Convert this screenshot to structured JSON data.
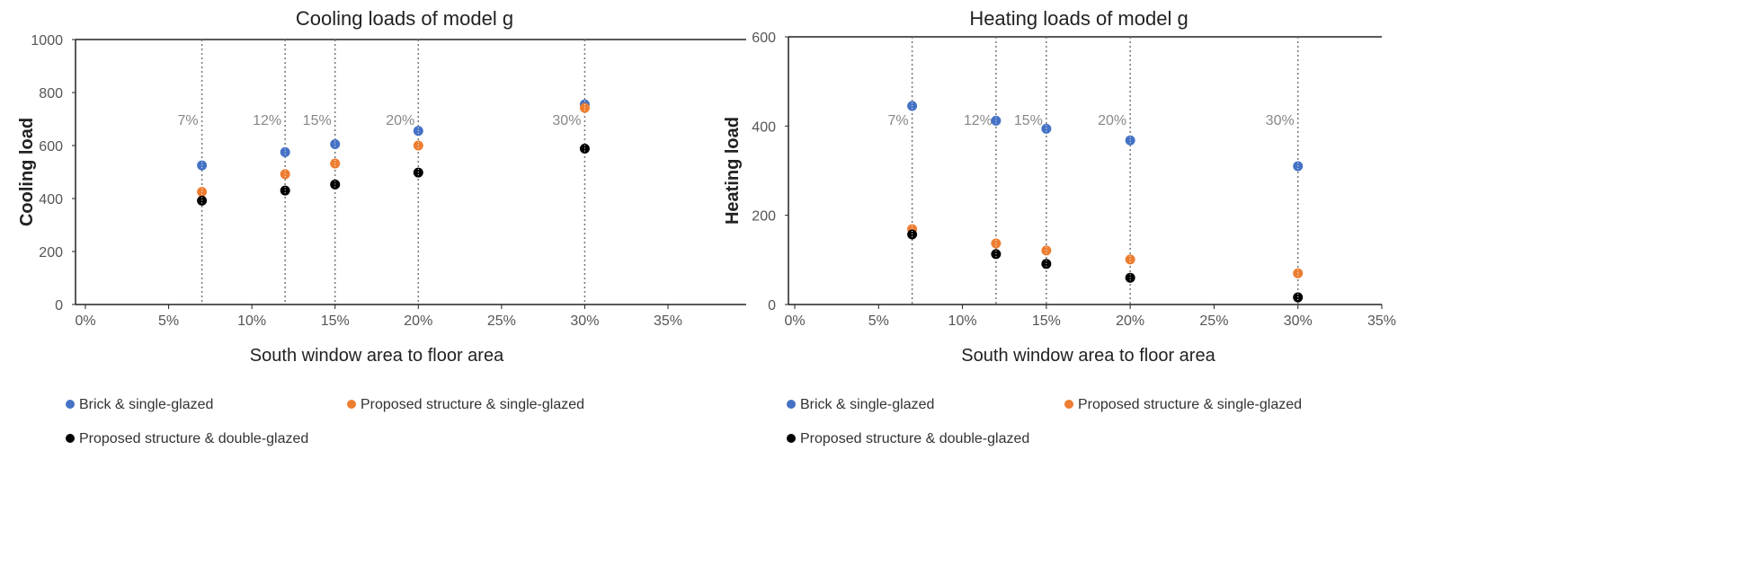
{
  "chart_data": [
    {
      "type": "scatter",
      "title": "Cooling loads of model g",
      "xlabel": "South window area to floor area",
      "ylabel": "Cooling load",
      "xlim": [
        0,
        35
      ],
      "ylim": [
        0,
        1000
      ],
      "xticks": [
        "0%",
        "5%",
        "10%",
        "15%",
        "20%",
        "25%",
        "30%",
        "35%"
      ],
      "yticks": [
        "0",
        "200",
        "400",
        "600",
        "800",
        "1000"
      ],
      "x": [
        7,
        12,
        15,
        20,
        30
      ],
      "annotations": [
        "7%",
        "12%",
        "15%",
        "20%",
        "30%"
      ],
      "series": [
        {
          "name": "Brick & single-glazed",
          "color": "#4472c4",
          "values": [
            525,
            575,
            605,
            655,
            755
          ]
        },
        {
          "name": "Proposed structure & single-glazed",
          "color": "#ed7d31",
          "values": [
            425,
            492,
            532,
            600,
            742
          ]
        },
        {
          "name": "Proposed structure & double-glazed",
          "color": "#000000",
          "values": [
            392,
            430,
            453,
            498,
            588
          ]
        }
      ]
    },
    {
      "type": "scatter",
      "title": "Heating loads of model g",
      "xlabel": "South window area to floor area",
      "ylabel": "Heating load",
      "xlim": [
        0,
        35
      ],
      "ylim": [
        0,
        600
      ],
      "xticks": [
        "0%",
        "5%",
        "10%",
        "15%",
        "20%",
        "25%",
        "30%",
        "35%"
      ],
      "yticks": [
        "0",
        "200",
        "400",
        "600"
      ],
      "x": [
        7,
        12,
        15,
        20,
        30
      ],
      "annotations": [
        "7%",
        "12%",
        "15%",
        "20%",
        "30%"
      ],
      "series": [
        {
          "name": "Brick & single-glazed",
          "color": "#4472c4",
          "values": [
            445,
            412,
            394,
            368,
            310
          ]
        },
        {
          "name": "Proposed structure & single-glazed",
          "color": "#ed7d31",
          "values": [
            169,
            137,
            121,
            101,
            70
          ]
        },
        {
          "name": "Proposed structure & double-glazed",
          "color": "#000000",
          "values": [
            157,
            113,
            91,
            60,
            16
          ]
        }
      ]
    }
  ]
}
